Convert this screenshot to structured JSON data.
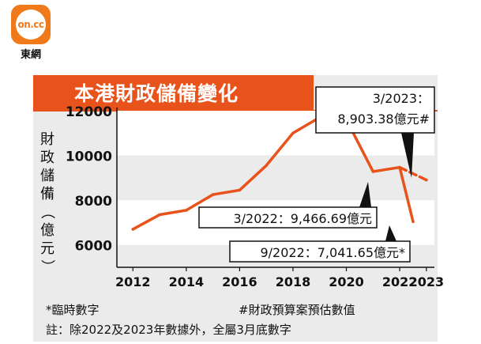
{
  "logo": {
    "mark": "on.cc",
    "caption": "東網"
  },
  "chart_data": {
    "type": "line",
    "title": "本港財政儲備變化",
    "ylabel": "財政儲備（億元）",
    "xlabel": "",
    "ylim": [
      5000,
      12000
    ],
    "xlim": [
      2011.4,
      2023.3
    ],
    "yticks": [
      6000,
      8000,
      10000,
      12000
    ],
    "ytick_labels": [
      "6000",
      "8000",
      "10000",
      "12000"
    ],
    "xticks": [
      2012,
      2014,
      2016,
      2018,
      2020,
      2022,
      2023
    ],
    "xtick_labels": [
      "2012",
      "2014",
      "2016",
      "2018",
      "2020",
      "2022",
      "2023"
    ],
    "grid_bands": [
      [
        10000,
        12000
      ],
      [
        6000,
        8000
      ]
    ],
    "series": [
      {
        "style": "solid",
        "color": "#e8531c",
        "x": [
          2012,
          2013,
          2014,
          2015,
          2016,
          2017,
          2018,
          2019,
          2020,
          2021,
          2022,
          2022.5
        ],
        "y": [
          6700,
          7350,
          7550,
          8250,
          8450,
          9550,
          11000,
          11700,
          11600,
          9280,
          9466.69,
          7041.65
        ]
      },
      {
        "style": "dashed",
        "color": "#e8531c",
        "x": [
          2022,
          2023
        ],
        "y": [
          9466.69,
          8903.38
        ]
      }
    ],
    "annotations": [
      {
        "id": "ann2023",
        "lines": [
          "3/2023：",
          "8,903.38億元#"
        ],
        "x": 2023,
        "y": 8903.38
      },
      {
        "id": "ann2022",
        "lines": [
          "3/2022：9,466.69億元"
        ],
        "x": 2022,
        "y": 9466.69
      },
      {
        "id": "ann2022b",
        "lines": [
          "9/2022：7,041.65億元*"
        ],
        "x": 2022.5,
        "y": 7041.65
      }
    ]
  },
  "notes": {
    "interim": "*臨時數字",
    "estimate": "#財政預算案預估數值",
    "footnote": "註：除2022及2023年數據外，全屬3月底數字"
  }
}
